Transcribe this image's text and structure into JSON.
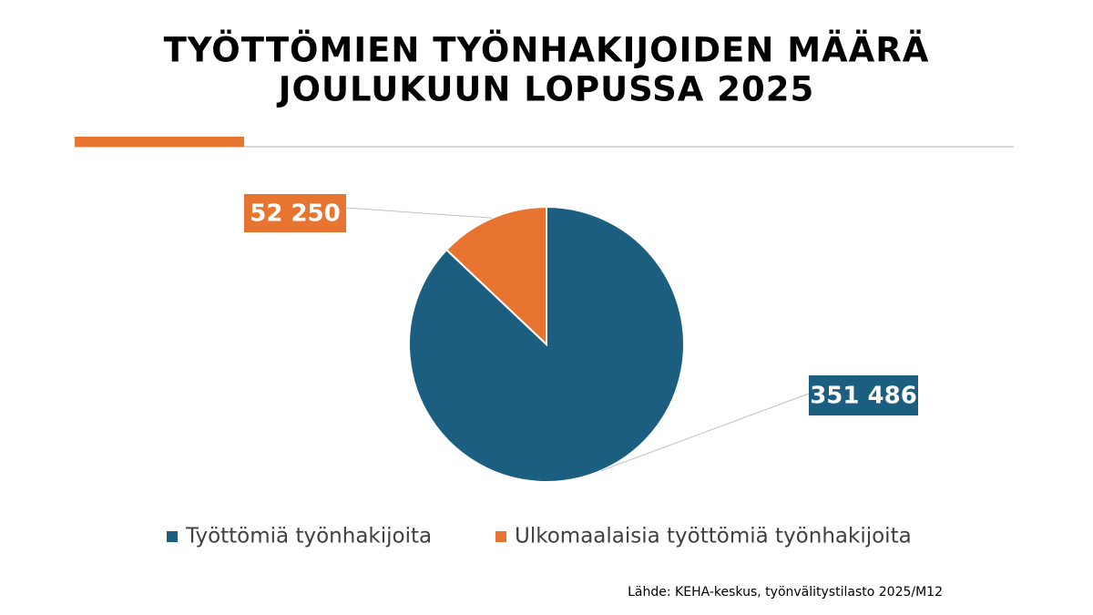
{
  "chart_data": {
    "type": "pie",
    "title": [
      "TYÖTTÖMIEN TYÖNHAKIJOIDEN MÄÄRÄ",
      "JOULUKUUN LOPUSSA 2025"
    ],
    "categories": [
      "Työttömiä työnhakijoita",
      "Ulkomaalaisia työttömiä työnhakijoita"
    ],
    "values": [
      351486,
      52250
    ],
    "value_labels": [
      "351 486",
      "52 250"
    ],
    "colors": [
      "#1b5e80",
      "#e87432"
    ],
    "source": "Lähde: KEHA-keskus, työnvälitystilasto 2025/M12"
  }
}
